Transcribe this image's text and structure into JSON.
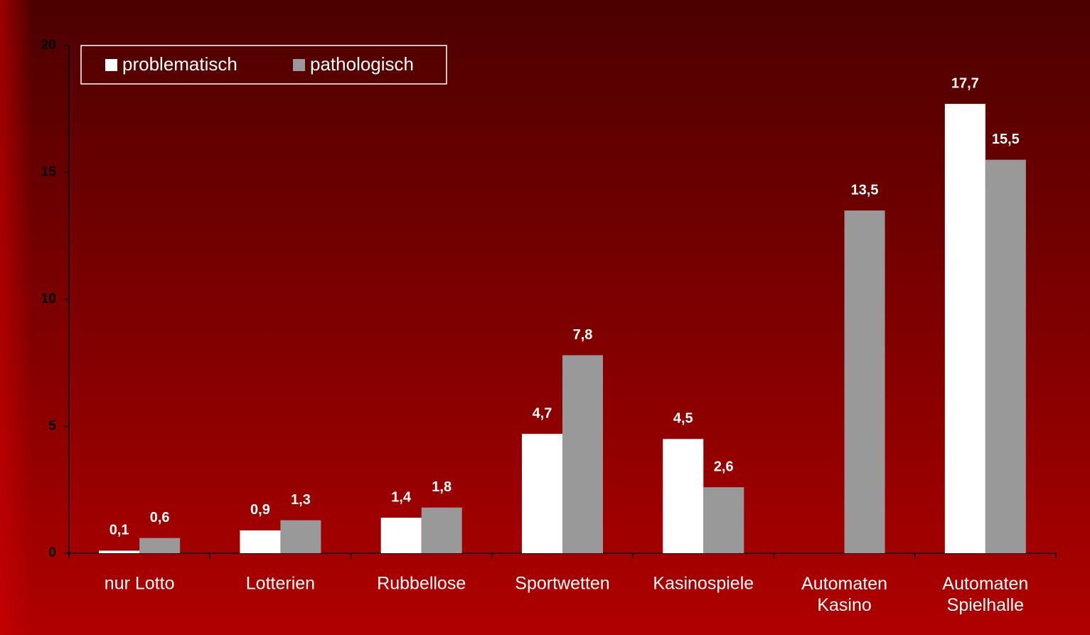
{
  "chart_data": {
    "type": "bar",
    "categories": [
      "nur Lotto",
      "Lotterien",
      "Rubbellose",
      "Sportwetten",
      "Kasinospiele",
      "Automaten\nKasino",
      "Automaten\nSpielhalle"
    ],
    "series": [
      {
        "name": "problematisch",
        "color": "#ffffff",
        "values": [
          0.1,
          0.9,
          1.4,
          4.7,
          4.5,
          null,
          17.7
        ],
        "value_labels": [
          "0,1",
          "0,9",
          "1,4",
          "4,7",
          "4,5",
          null,
          "17,7"
        ]
      },
      {
        "name": "pathologisch",
        "color": "#999999",
        "values": [
          0.6,
          1.3,
          1.8,
          7.8,
          2.6,
          13.5,
          15.5
        ],
        "value_labels": [
          "0,6",
          "1,3",
          "1,8",
          "7,8",
          "2,6",
          "13,5",
          "15,5"
        ]
      }
    ],
    "ylim": [
      0,
      20
    ],
    "yticks": [
      0,
      5,
      10,
      15,
      20
    ],
    "grid": false,
    "legend": "top-left"
  }
}
